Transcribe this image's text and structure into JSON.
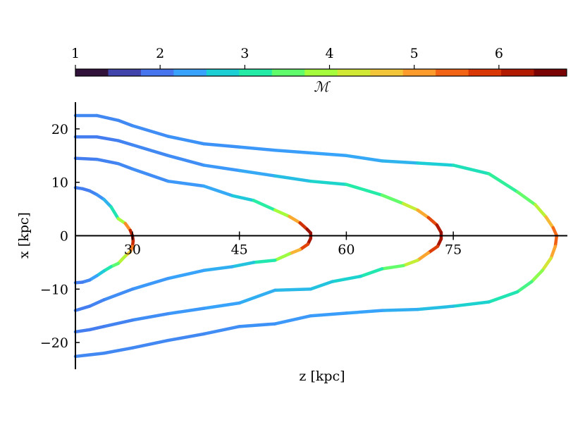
{
  "chart_data": {
    "type": "line",
    "xlabel": "z [kpc]",
    "ylabel": "x [kpc]",
    "xlim": [
      22,
      91
    ],
    "ylim": [
      -25,
      25
    ],
    "x_ticks": [
      30,
      45,
      60,
      75
    ],
    "y_ticks": [
      20,
      10,
      0,
      -10,
      -20
    ],
    "x_tick_labels": [
      "30",
      "45",
      "60",
      "75"
    ],
    "y_tick_labels": [
      "20",
      "10",
      "0",
      "−10",
      "−20"
    ],
    "colorbar": {
      "label": "ℳ",
      "range": [
        1,
        6.8
      ],
      "ticks": [
        1,
        2,
        3,
        4,
        5,
        6
      ],
      "tick_labels": [
        "1",
        "2",
        "3",
        "4",
        "5",
        "6"
      ],
      "colors": [
        "#30123b",
        "#4145ab",
        "#4675ed",
        "#39a2fc",
        "#1bcfd4",
        "#24eca6",
        "#61fc6c",
        "#a4fc3b",
        "#d1e834",
        "#f3c63a",
        "#fe9b2d",
        "#f36315",
        "#d93806",
        "#b11901",
        "#7a0403"
      ],
      "location": "top"
    },
    "series": [
      {
        "x": [
          22,
          23,
          24,
          25,
          26,
          27,
          28,
          29,
          29.7,
          30,
          30.1,
          30,
          29.7,
          29,
          28,
          27,
          26,
          25,
          24,
          23,
          22
        ],
        "y": [
          9,
          8.8,
          8.4,
          7.7,
          6.8,
          5.4,
          3.2,
          2.3,
          1.0,
          0,
          -1.0,
          -2.0,
          -3.0,
          -3.8,
          -5.2,
          -5.8,
          -6.6,
          -7.5,
          -8.3,
          -8.7,
          -8.8
        ],
        "mach": [
          1.9,
          1.9,
          1.9,
          2.0,
          2.2,
          2.6,
          3.3,
          4.5,
          6.0,
          6.6,
          6.5,
          5.8,
          5.0,
          4.4,
          3.7,
          3.2,
          2.8,
          2.4,
          2.1,
          1.9,
          1.9
        ]
      },
      {
        "x": [
          22,
          25,
          28,
          30,
          35,
          40,
          44,
          47,
          50,
          52,
          53.5,
          54.5,
          55,
          55,
          54.6,
          53.5,
          52,
          50,
          47,
          44,
          40,
          35,
          30,
          26,
          24,
          22
        ],
        "y": [
          14.5,
          14.3,
          13.5,
          12.5,
          10.2,
          9.3,
          7.5,
          6.6,
          4.8,
          3.6,
          2.4,
          1.2,
          0.5,
          -0.5,
          -1.6,
          -2.6,
          -3.4,
          -4.6,
          -5.0,
          -5.8,
          -6.5,
          -8.0,
          -10.0,
          -12.0,
          -13.2,
          -14.0
        ],
        "mach": [
          1.9,
          1.9,
          2.0,
          2.0,
          2.1,
          2.2,
          2.4,
          2.8,
          3.4,
          4.4,
          5.6,
          6.5,
          6.6,
          6.6,
          6.3,
          5.4,
          4.4,
          3.3,
          2.7,
          2.4,
          2.3,
          2.2,
          2.1,
          2.0,
          1.9,
          1.9
        ]
      },
      {
        "x": [
          22,
          25,
          28,
          30,
          35,
          40,
          45,
          50,
          55,
          60,
          65,
          68,
          70,
          71.5,
          72.7,
          73.3,
          73.3,
          72.8,
          71.5,
          70,
          68,
          65,
          62,
          58,
          55,
          50,
          45,
          40,
          35,
          30,
          26,
          24,
          22
        ],
        "y": [
          18.5,
          18.5,
          17.8,
          17.0,
          15.0,
          13.2,
          12.2,
          11.2,
          10.2,
          9.6,
          7.6,
          6.0,
          4.8,
          3.4,
          2.0,
          0.6,
          -0.6,
          -2.0,
          -3.2,
          -4.6,
          -5.6,
          -6.2,
          -7.6,
          -8.6,
          -10.0,
          -10.2,
          -12.6,
          -13.6,
          -14.6,
          -15.8,
          -17.0,
          -17.6,
          -18.0
        ],
        "mach": [
          1.9,
          1.9,
          1.9,
          2.0,
          2.0,
          2.1,
          2.2,
          2.4,
          2.6,
          2.9,
          3.2,
          3.8,
          4.6,
          5.4,
          6.2,
          6.6,
          6.6,
          6.3,
          5.5,
          4.6,
          3.8,
          3.2,
          2.8,
          2.6,
          2.5,
          2.4,
          2.3,
          2.2,
          2.1,
          2.0,
          1.9,
          1.9,
          1.9
        ]
      },
      {
        "x": [
          22,
          25,
          28,
          30,
          35,
          40,
          45,
          50,
          55,
          60,
          65,
          70,
          75,
          80,
          84,
          86.5,
          88,
          89,
          89.5,
          89.3,
          88.7,
          87.5,
          86,
          84,
          80,
          75,
          70,
          65,
          60,
          55,
          50,
          45,
          40,
          35,
          30,
          26,
          22
        ],
        "y": [
          22.5,
          22.5,
          21.6,
          20.6,
          18.6,
          17.2,
          16.6,
          16.0,
          15.5,
          15.0,
          14.0,
          13.6,
          13.2,
          11.6,
          8.2,
          5.8,
          3.5,
          1.5,
          0,
          -2.0,
          -4.2,
          -6.5,
          -8.6,
          -10.5,
          -12.4,
          -13.2,
          -13.8,
          -14.0,
          -14.5,
          -15.0,
          -16.5,
          -17.0,
          -18.4,
          -19.6,
          -21.0,
          -22.0,
          -22.6
        ],
        "mach": [
          2.0,
          2.0,
          2.0,
          2.0,
          2.1,
          2.1,
          2.1,
          2.2,
          2.2,
          2.3,
          2.3,
          2.5,
          2.8,
          3.0,
          3.3,
          3.7,
          4.5,
          5.2,
          5.8,
          5.4,
          4.7,
          4.0,
          3.5,
          3.1,
          2.8,
          2.6,
          2.4,
          2.3,
          2.2,
          2.2,
          2.1,
          2.1,
          2.0,
          2.0,
          2.0,
          2.0,
          2.0
        ]
      }
    ]
  }
}
